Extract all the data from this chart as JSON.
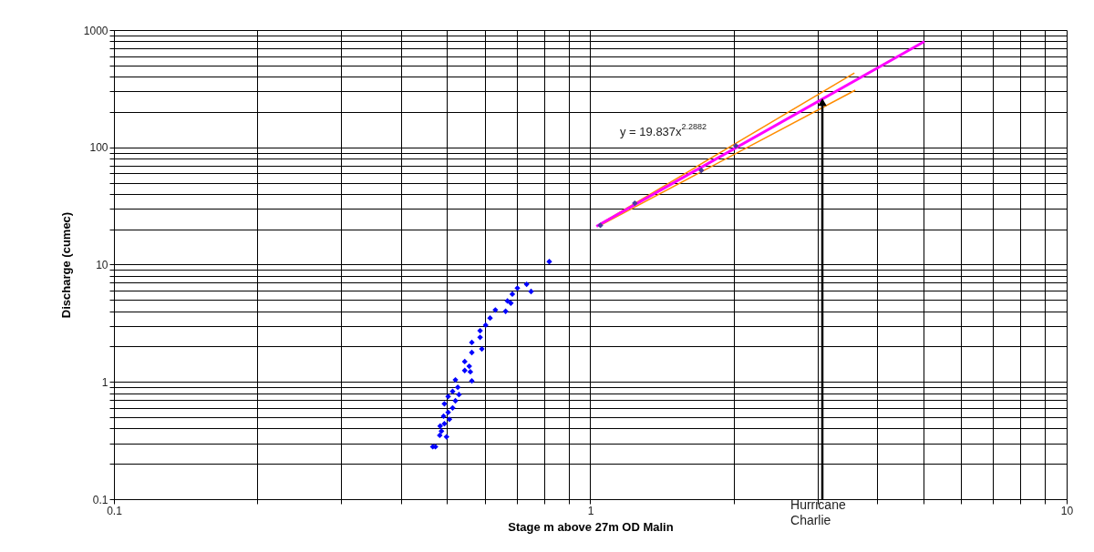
{
  "chart_data": {
    "type": "scatter",
    "xlabel": "Stage m above 27m OD Malin",
    "ylabel": "Discharge (cumec)",
    "log": "xy",
    "grid": true,
    "marker": "diamond",
    "xlim": [
      0.1,
      10
    ],
    "ylim": [
      0.1,
      1000
    ],
    "xticks": [
      0.1,
      {
        "value": 0.2,
        "label": null
      },
      {
        "value": 0.3,
        "label": null
      },
      {
        "value": 0.4,
        "label": null
      },
      {
        "value": 0.5,
        "label": null
      },
      {
        "value": 0.6,
        "label": null
      },
      {
        "value": 0.7,
        "label": null
      },
      {
        "value": 0.8,
        "label": null
      },
      {
        "value": 0.9,
        "label": null
      },
      1,
      {
        "value": 2,
        "label": null
      },
      {
        "value": 3,
        "label": null
      },
      {
        "value": 4,
        "label": null
      },
      {
        "value": 5,
        "label": null
      },
      {
        "value": 6,
        "label": null
      },
      {
        "value": 7,
        "label": null
      },
      {
        "value": 8,
        "label": null
      },
      {
        "value": 9,
        "label": null
      },
      10
    ],
    "yticks": [
      0.1,
      {
        "value": 0.2,
        "label": null
      },
      {
        "value": 0.3,
        "label": null
      },
      {
        "value": 0.4,
        "label": null
      },
      {
        "value": 0.5,
        "label": null
      },
      {
        "value": 0.6,
        "label": null
      },
      {
        "value": 0.7,
        "label": null
      },
      {
        "value": 0.8,
        "label": null
      },
      {
        "value": 0.9,
        "label": null
      },
      1,
      {
        "value": 2,
        "label": null
      },
      {
        "value": 3,
        "label": null
      },
      {
        "value": 4,
        "label": null
      },
      {
        "value": 5,
        "label": null
      },
      {
        "value": 6,
        "label": null
      },
      {
        "value": 7,
        "label": null
      },
      {
        "value": 8,
        "label": null
      },
      {
        "value": 9,
        "label": null
      },
      10,
      {
        "value": 20,
        "label": null
      },
      {
        "value": 30,
        "label": null
      },
      {
        "value": 40,
        "label": null
      },
      {
        "value": 50,
        "label": null
      },
      {
        "value": 60,
        "label": null
      },
      {
        "value": 70,
        "label": null
      },
      {
        "value": 80,
        "label": null
      },
      {
        "value": 90,
        "label": null
      },
      100,
      {
        "value": 200,
        "label": null
      },
      {
        "value": 300,
        "label": null
      },
      {
        "value": 400,
        "label": null
      },
      {
        "value": 500,
        "label": null
      },
      {
        "value": 600,
        "label": null
      },
      {
        "value": 700,
        "label": null
      },
      {
        "value": 800,
        "label": null
      },
      {
        "value": 900,
        "label": null
      },
      1000
    ],
    "series": [
      {
        "color": "#0000ff",
        "x": [
          0.82,
          0.735,
          0.751,
          0.703,
          0.686,
          0.67,
          0.681,
          0.664,
          0.632,
          0.616,
          0.603,
          0.587,
          0.587,
          0.564,
          0.592,
          0.564,
          0.545,
          0.557,
          0.545,
          0.56,
          0.564,
          0.521,
          0.527,
          0.514,
          0.53,
          0.503,
          0.521,
          0.494,
          0.514,
          0.503,
          0.492,
          0.506,
          0.494,
          0.484,
          0.487,
          0.499,
          0.483,
          0.473,
          0.467
        ],
        "values": [
          10.6,
          6.8,
          5.9,
          6.3,
          5.6,
          4.9,
          4.7,
          4.0,
          4.1,
          3.5,
          3.05,
          2.73,
          2.4,
          2.17,
          1.91,
          1.78,
          1.49,
          1.36,
          1.25,
          1.22,
          1.02,
          1.04,
          0.9,
          0.83,
          0.78,
          0.75,
          0.69,
          0.65,
          0.6,
          0.55,
          0.51,
          0.48,
          0.44,
          0.42,
          0.38,
          0.34,
          0.35,
          0.28,
          0.28
        ]
      },
      {
        "color": "#4b3c9e",
        "x": [
          1.05,
          1.24,
          1.71,
          2.02
        ],
        "values": [
          21.6,
          33.4,
          63.7,
          103
        ]
      },
      {
        "type": "line",
        "marker": "none",
        "color": "#ff8c00",
        "x": [
          1.054,
          3.585
        ],
        "values": [
          22.5,
          431
        ]
      },
      {
        "type": "line",
        "marker": "none",
        "color": "#ff8c00",
        "x": [
          1.054,
          3.6
        ],
        "values": [
          21.8,
          307
        ]
      },
      {
        "type": "line",
        "marker": "none",
        "color": "#ff00ff",
        "x": [
          1.03,
          5.03
        ],
        "values": [
          21.2,
          800
        ]
      }
    ],
    "annotations": [
      "y = 19.837x$^{2.2882}$",
      {
        "text": "Hurricane Charlie",
        "x": 3.07,
        "y": 243
      }
    ]
  }
}
